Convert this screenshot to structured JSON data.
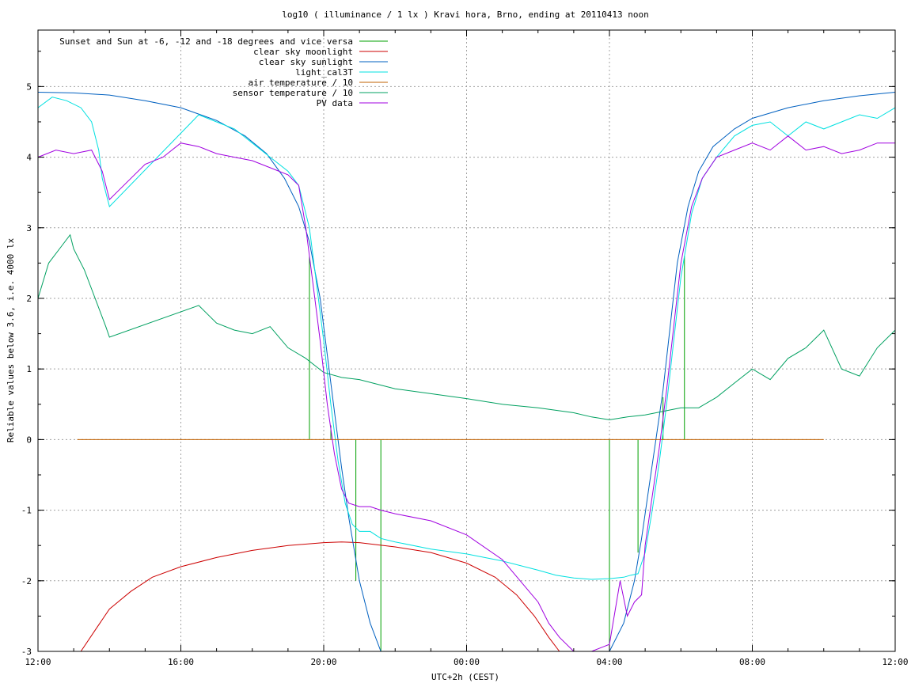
{
  "chart_data": {
    "type": "line",
    "title": "log10 ( illuminance / 1 lx ) Kravi hora, Brno, ending at 20110413 noon",
    "xlabel": "UTC+2h (CEST)",
    "ylabel": "Reliable values below 3.6, i.e. 4000 lx",
    "xlim": [
      0,
      24
    ],
    "ylim": [
      -3,
      5.8
    ],
    "x_ticks": [
      {
        "value": 0,
        "label": "12:00"
      },
      {
        "value": 4,
        "label": "16:00"
      },
      {
        "value": 8,
        "label": "20:00"
      },
      {
        "value": 12,
        "label": "00:00"
      },
      {
        "value": 16,
        "label": "04:00"
      },
      {
        "value": 20,
        "label": "08:00"
      },
      {
        "value": 24,
        "label": "12:00"
      }
    ],
    "x_minor_step": 1,
    "y_ticks": [
      {
        "value": -3,
        "label": "-3"
      },
      {
        "value": -2,
        "label": "-2"
      },
      {
        "value": -1,
        "label": "-1"
      },
      {
        "value": 0,
        "label": "0"
      },
      {
        "value": 1,
        "label": "1"
      },
      {
        "value": 2,
        "label": "2"
      },
      {
        "value": 3,
        "label": "3"
      },
      {
        "value": 4,
        "label": "4"
      },
      {
        "value": 5,
        "label": "5"
      }
    ],
    "y_minor_step": 0.5,
    "grid": true,
    "legend_position": "top-left",
    "series": [
      {
        "name": "Sunset and Sun at -6, -12 and -18 degrees and vice versa",
        "color": "#00a000",
        "style": "impulses",
        "impulses": [
          {
            "x": 7.6,
            "y": 2.6
          },
          {
            "x": 8.2,
            "y": 0.2
          },
          {
            "x": 8.9,
            "y": -2.0
          },
          {
            "x": 9.6,
            "y": -3.0
          },
          {
            "x": 16.0,
            "y": -3.0
          },
          {
            "x": 16.8,
            "y": -1.6
          },
          {
            "x": 17.5,
            "y": 0.6
          },
          {
            "x": 18.1,
            "y": 2.6
          }
        ]
      },
      {
        "name": "clear sky moonlight",
        "color": "#cc0000",
        "x": [
          1.2,
          1.6,
          2.0,
          2.6,
          3.2,
          4.0,
          5.0,
          6.0,
          7.0,
          8.0,
          8.5,
          9.0,
          10.0,
          11.0,
          12.0,
          12.8,
          13.4,
          13.9,
          14.3,
          14.6
        ],
        "y": [
          -3.0,
          -2.7,
          -2.4,
          -2.15,
          -1.95,
          -1.8,
          -1.67,
          -1.57,
          -1.5,
          -1.46,
          -1.45,
          -1.46,
          -1.52,
          -1.6,
          -1.75,
          -1.95,
          -2.2,
          -2.5,
          -2.8,
          -3.0
        ]
      },
      {
        "name": "clear sky sunlight",
        "color": "#0060c0",
        "x": [
          0.0,
          1.0,
          2.0,
          3.0,
          4.0,
          5.0,
          5.8,
          6.4,
          6.9,
          7.3,
          7.6,
          7.9,
          8.1,
          8.3,
          8.5,
          8.7,
          9.0,
          9.3,
          9.6,
          16.0,
          16.4,
          16.7,
          16.9,
          17.1,
          17.3,
          17.5,
          17.7,
          17.9,
          18.2,
          18.5,
          18.9,
          19.5,
          20.0,
          21.0,
          22.0,
          23.0,
          24.0
        ],
        "y": [
          4.92,
          4.91,
          4.88,
          4.8,
          4.7,
          4.52,
          4.3,
          4.05,
          3.7,
          3.3,
          2.8,
          2.0,
          1.2,
          0.4,
          -0.4,
          -1.1,
          -2.0,
          -2.6,
          -3.0,
          -3.0,
          -2.6,
          -2.0,
          -1.4,
          -0.7,
          0.0,
          0.7,
          1.6,
          2.5,
          3.3,
          3.8,
          4.15,
          4.4,
          4.55,
          4.7,
          4.8,
          4.87,
          4.92
        ]
      },
      {
        "name": "light_cal3T",
        "color": "#00e0e0",
        "x": [
          0.0,
          0.4,
          0.8,
          1.2,
          1.5,
          1.7,
          1.8,
          1.9,
          2.0,
          4.5,
          5.0,
          5.5,
          6.0,
          6.5,
          7.0,
          7.3,
          7.6,
          7.8,
          8.0,
          8.2,
          8.4,
          8.6,
          8.8,
          9.0,
          9.3,
          9.6,
          10.0,
          11.0,
          12.0,
          13.0,
          14.0,
          14.5,
          15.0,
          15.5,
          16.0,
          16.4,
          16.6,
          16.8,
          17.0,
          17.2,
          17.4,
          17.6,
          17.8,
          18.0,
          18.3,
          18.6,
          19.0,
          19.5,
          20.0,
          20.5,
          21.0,
          21.5,
          22.0,
          22.5,
          23.0,
          23.5,
          24.0
        ],
        "y": [
          4.7,
          4.85,
          4.8,
          4.7,
          4.5,
          4.1,
          3.7,
          3.5,
          3.3,
          4.6,
          4.5,
          4.4,
          4.2,
          4.0,
          3.8,
          3.6,
          3.0,
          2.2,
          1.4,
          0.5,
          -0.3,
          -0.9,
          -1.2,
          -1.3,
          -1.3,
          -1.4,
          -1.45,
          -1.55,
          -1.62,
          -1.72,
          -1.85,
          -1.92,
          -1.96,
          -1.98,
          -1.97,
          -1.95,
          -1.92,
          -1.9,
          -1.6,
          -1.0,
          -0.3,
          0.5,
          1.4,
          2.3,
          3.2,
          3.7,
          4.0,
          4.3,
          4.45,
          4.5,
          4.3,
          4.5,
          4.4,
          4.5,
          4.6,
          4.55,
          4.7
        ]
      },
      {
        "name": "air temperature / 10",
        "color": "#c06000",
        "x": [
          1.1,
          22.0
        ],
        "y": [
          0.0,
          0.0
        ]
      },
      {
        "name": "sensor temperature / 10",
        "color": "#00a060",
        "x": [
          0.0,
          0.3,
          0.6,
          0.9,
          1.0,
          1.3,
          1.6,
          1.9,
          2.0,
          4.5,
          5.0,
          5.5,
          6.0,
          6.5,
          7.0,
          7.5,
          8.0,
          8.5,
          9.0,
          10.0,
          11.0,
          12.0,
          13.0,
          14.0,
          15.0,
          15.5,
          16.0,
          16.5,
          17.0,
          17.5,
          18.0,
          18.5,
          19.0,
          19.5,
          20.0,
          20.5,
          21.0,
          21.5,
          22.0,
          22.5,
          23.0,
          23.5,
          24.0
        ],
        "y": [
          2.0,
          2.5,
          2.7,
          2.9,
          2.7,
          2.4,
          2.0,
          1.6,
          1.45,
          1.9,
          1.65,
          1.55,
          1.5,
          1.6,
          1.3,
          1.15,
          0.95,
          0.88,
          0.85,
          0.72,
          0.65,
          0.58,
          0.5,
          0.45,
          0.38,
          0.32,
          0.28,
          0.32,
          0.35,
          0.4,
          0.45,
          0.45,
          0.6,
          0.8,
          1.0,
          0.85,
          1.15,
          1.3,
          1.55,
          1.0,
          0.9,
          1.3,
          1.55
        ]
      },
      {
        "name": "PV data",
        "color": "#a000e0",
        "x": [
          0.0,
          0.5,
          1.0,
          1.5,
          1.8,
          2.0,
          2.2,
          3.0,
          3.5,
          4.0,
          4.5,
          5.0,
          5.5,
          6.0,
          6.5,
          7.0,
          7.3,
          7.5,
          7.7,
          7.9,
          8.1,
          8.3,
          8.5,
          8.7,
          9.0,
          9.3,
          9.6,
          10.0,
          11.0,
          12.0,
          13.0,
          13.5,
          14.0,
          14.3,
          14.6,
          15.0,
          15.5,
          16.0,
          16.3,
          16.5,
          16.7,
          16.9,
          17.0,
          17.2,
          17.4,
          17.6,
          17.8,
          18.0,
          18.3,
          18.6,
          19.0,
          19.5,
          20.0,
          20.5,
          21.0,
          21.5,
          22.0,
          22.5,
          23.0,
          23.5,
          24.0
        ],
        "y": [
          4.0,
          4.1,
          4.05,
          4.1,
          3.8,
          3.4,
          3.5,
          3.9,
          4.0,
          4.2,
          4.15,
          4.05,
          4.0,
          3.95,
          3.85,
          3.75,
          3.6,
          3.0,
          2.2,
          1.4,
          0.5,
          -0.2,
          -0.7,
          -0.9,
          -0.95,
          -0.95,
          -1.0,
          -1.05,
          -1.15,
          -1.35,
          -1.7,
          -2.0,
          -2.3,
          -2.6,
          -2.8,
          -3.0,
          -3.0,
          -2.9,
          -2.0,
          -2.5,
          -2.3,
          -2.2,
          -1.5,
          -0.8,
          -0.1,
          0.7,
          1.6,
          2.5,
          3.3,
          3.7,
          4.0,
          4.1,
          4.2,
          4.1,
          4.3,
          4.1,
          4.15,
          4.05,
          4.1,
          4.2,
          4.2
        ]
      }
    ]
  }
}
